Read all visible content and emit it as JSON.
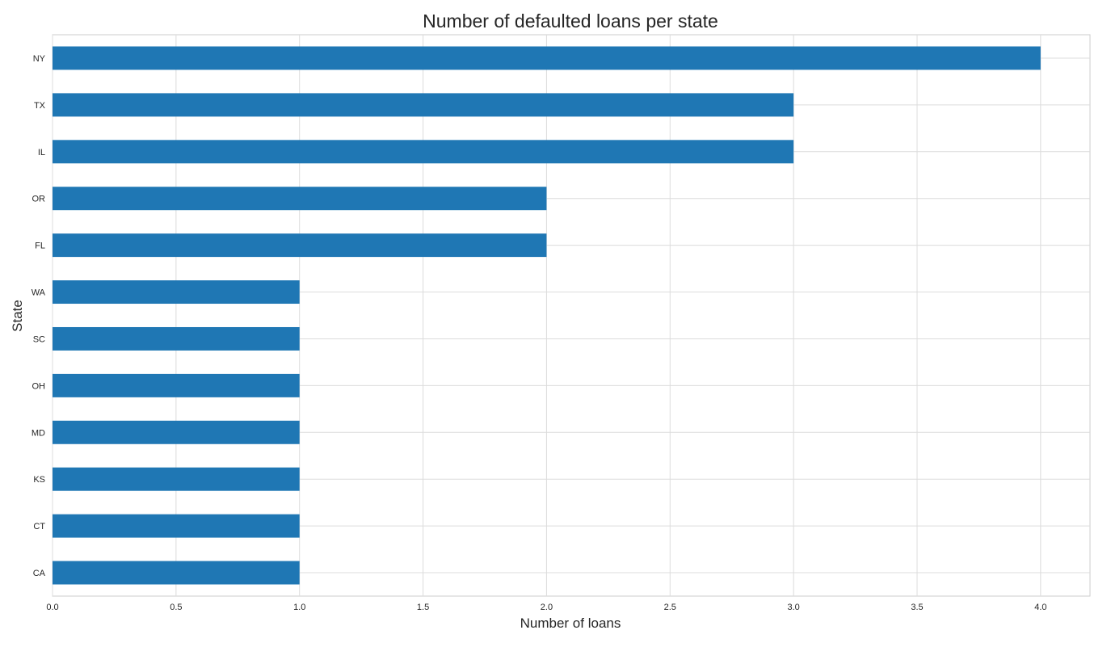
{
  "chart_data": {
    "type": "bar",
    "orientation": "horizontal",
    "title": "Number of defaulted loans per state",
    "xlabel": "Number of loans",
    "ylabel": "State",
    "categories": [
      "NY",
      "TX",
      "IL",
      "OR",
      "FL",
      "WA",
      "SC",
      "OH",
      "MD",
      "KS",
      "CT",
      "CA"
    ],
    "values": [
      4,
      3,
      3,
      2,
      2,
      1,
      1,
      1,
      1,
      1,
      1,
      1
    ],
    "xlim": [
      0,
      4.2
    ],
    "xticks": [
      "0.0",
      "0.5",
      "1.0",
      "1.5",
      "2.0",
      "2.5",
      "3.0",
      "3.5",
      "4.0"
    ],
    "grid": true,
    "legend": "none",
    "colors": {
      "bar": "#1f77b4",
      "grid": "#dcdcdc",
      "text": "#262626",
      "spine": "#cccccc"
    }
  }
}
